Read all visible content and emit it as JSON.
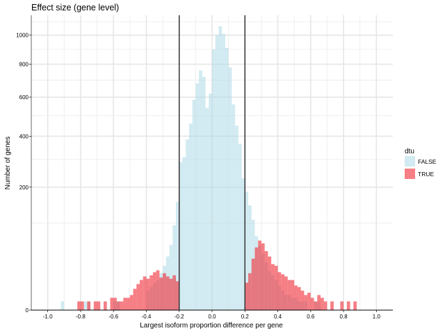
{
  "chart_data": {
    "type": "histogram",
    "title": "Effect size (gene level)",
    "xlabel": "Largest isoform proportion difference per gene",
    "ylabel": "Number of genes",
    "xlim": [
      -1.1,
      1.1
    ],
    "x_ticks": [
      -1.0,
      -0.8,
      -0.6,
      -0.4,
      -0.2,
      0.0,
      0.2,
      0.4,
      0.6,
      0.8,
      1.0
    ],
    "x_tick_labels": [
      "-1.0",
      "-0.8",
      "-0.6",
      "-0.4",
      "-0.2",
      "0.0",
      "0.2",
      "0.4",
      "0.6",
      "0.8",
      "1.0"
    ],
    "y_scale": "sqrt",
    "ylim": [
      0,
      1150
    ],
    "y_ticks": [
      0,
      200,
      400,
      600,
      800,
      1000
    ],
    "y_tick_labels": [
      "0",
      "200",
      "400",
      "600",
      "800",
      "1000"
    ],
    "bin_width": 0.02,
    "vlines": [
      -0.2,
      0.2
    ],
    "legend": {
      "title": "dtu",
      "entries": [
        {
          "label": "FALSE",
          "color": "#add8e6"
        },
        {
          "label": "TRUE",
          "color": "#f0303a"
        }
      ]
    },
    "series": [
      {
        "name": "FALSE",
        "color": "#add8e6",
        "bins": [
          [
            -0.92,
            1
          ],
          [
            -0.78,
            1
          ],
          [
            -0.76,
            1
          ],
          [
            -0.6,
            1
          ],
          [
            -0.58,
            1
          ],
          [
            -0.4,
            5
          ],
          [
            -0.38,
            7
          ],
          [
            -0.36,
            10
          ],
          [
            -0.34,
            12
          ],
          [
            -0.32,
            18
          ],
          [
            -0.3,
            26
          ],
          [
            -0.28,
            38
          ],
          [
            -0.26,
            56
          ],
          [
            -0.24,
            95
          ],
          [
            -0.22,
            155
          ],
          [
            -0.2,
            290
          ],
          [
            -0.18,
            310
          ],
          [
            -0.16,
            385
          ],
          [
            -0.14,
            460
          ],
          [
            -0.12,
            585
          ],
          [
            -0.1,
            680
          ],
          [
            -0.08,
            760
          ],
          [
            -0.06,
            720
          ],
          [
            -0.04,
            540
          ],
          [
            -0.02,
            620
          ],
          [
            0.0,
            900
          ],
          [
            0.02,
            1000
          ],
          [
            0.04,
            1065
          ],
          [
            0.06,
            1010
          ],
          [
            0.08,
            910
          ],
          [
            0.1,
            780
          ],
          [
            0.12,
            560
          ],
          [
            0.14,
            450
          ],
          [
            0.16,
            365
          ],
          [
            0.18,
            230
          ],
          [
            0.2,
            185
          ],
          [
            0.22,
            145
          ],
          [
            0.24,
            108
          ],
          [
            0.26,
            72
          ],
          [
            0.28,
            55
          ],
          [
            0.3,
            42
          ],
          [
            0.32,
            30
          ],
          [
            0.34,
            20
          ],
          [
            0.36,
            16
          ],
          [
            0.38,
            12
          ],
          [
            0.4,
            8
          ],
          [
            0.42,
            5
          ],
          [
            0.44,
            3
          ],
          [
            0.46,
            3
          ],
          [
            0.48,
            2
          ],
          [
            0.5,
            2
          ],
          [
            0.52,
            1
          ],
          [
            0.54,
            1
          ],
          [
            0.56,
            1
          ],
          [
            0.62,
            1
          ],
          [
            0.64,
            1
          ]
        ]
      },
      {
        "name": "TRUE",
        "color": "#f0303a",
        "bins": [
          [
            -0.82,
            1
          ],
          [
            -0.8,
            1
          ],
          [
            -0.76,
            1
          ],
          [
            -0.72,
            1
          ],
          [
            -0.7,
            1
          ],
          [
            -0.66,
            1
          ],
          [
            -0.62,
            2
          ],
          [
            -0.6,
            2
          ],
          [
            -0.58,
            1
          ],
          [
            -0.56,
            1
          ],
          [
            -0.54,
            2
          ],
          [
            -0.52,
            2
          ],
          [
            -0.5,
            3
          ],
          [
            -0.48,
            6
          ],
          [
            -0.46,
            9
          ],
          [
            -0.44,
            12
          ],
          [
            -0.42,
            15
          ],
          [
            -0.4,
            13
          ],
          [
            -0.38,
            16
          ],
          [
            -0.36,
            19
          ],
          [
            -0.34,
            21
          ],
          [
            -0.32,
            14
          ],
          [
            -0.3,
            18
          ],
          [
            -0.28,
            15
          ],
          [
            -0.26,
            13
          ],
          [
            -0.24,
            16
          ],
          [
            -0.22,
            11
          ],
          [
            0.2,
            10
          ],
          [
            0.22,
            18
          ],
          [
            0.24,
            35
          ],
          [
            0.26,
            52
          ],
          [
            0.28,
            64
          ],
          [
            0.3,
            59
          ],
          [
            0.32,
            46
          ],
          [
            0.34,
            38
          ],
          [
            0.36,
            28
          ],
          [
            0.38,
            26
          ],
          [
            0.4,
            19
          ],
          [
            0.42,
            17
          ],
          [
            0.44,
            15
          ],
          [
            0.46,
            12
          ],
          [
            0.48,
            12
          ],
          [
            0.5,
            8
          ],
          [
            0.52,
            7
          ],
          [
            0.54,
            5
          ],
          [
            0.56,
            3
          ],
          [
            0.58,
            4
          ],
          [
            0.6,
            2
          ],
          [
            0.62,
            1
          ],
          [
            0.64,
            3
          ],
          [
            0.66,
            2
          ],
          [
            0.68,
            1
          ],
          [
            0.72,
            1
          ],
          [
            0.78,
            1
          ],
          [
            0.82,
            1
          ],
          [
            0.86,
            1
          ]
        ]
      }
    ]
  }
}
